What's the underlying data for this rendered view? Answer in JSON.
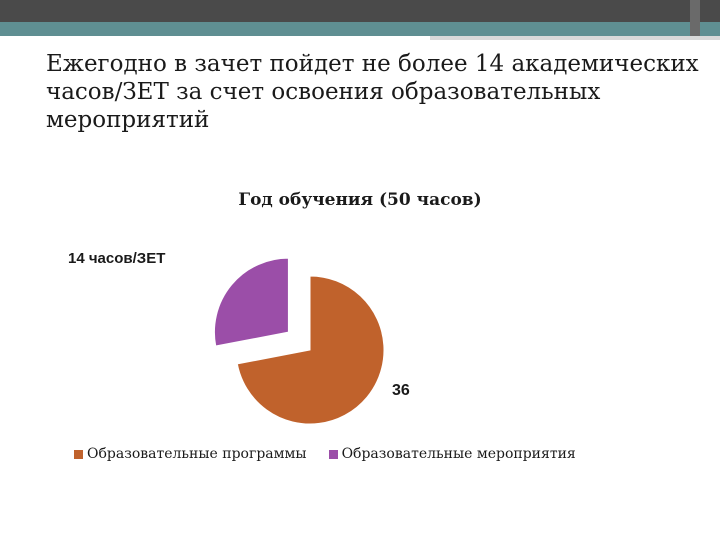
{
  "slide": {
    "title": "Ежегодно в зачет пойдет не более 14 академических часов/ЗЕТ за счет освоения образовательных мероприятий"
  },
  "chart_data": {
    "type": "pie",
    "title": "Год обучения (50 часов)",
    "categories": [
      "Образовательные программы",
      "Образовательные мероприятия"
    ],
    "values": [
      36,
      14
    ],
    "data_labels": [
      "36",
      "14 часов/ЗЕТ"
    ],
    "colors": [
      "#c0622c",
      "#9b4ea8"
    ],
    "exploded": [
      false,
      true
    ],
    "legend_position": "bottom"
  },
  "theme": {
    "band_dark": "#4a4a4a",
    "band_teal": "#5f8f92"
  }
}
